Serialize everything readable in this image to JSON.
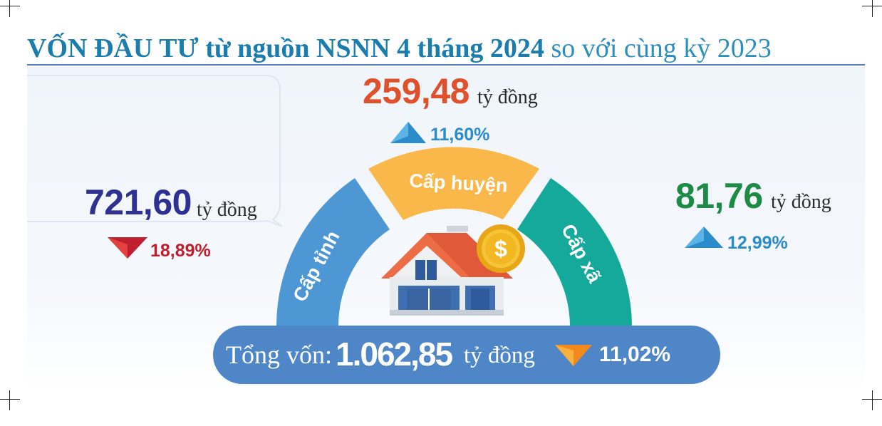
{
  "title": {
    "bold": "VỐN ĐẦU TƯ",
    "mid": " từ nguồn NSNN 4 tháng 2024",
    "tail": " so với cùng kỳ 2023"
  },
  "left": {
    "value": "721,60",
    "unit": "tỷ đồng",
    "change": "18,89%",
    "direction": "down",
    "color": "#2e3192",
    "change_color": "#be1e2d"
  },
  "center": {
    "value": "259,48",
    "unit": "tỷ đồng",
    "change": "11,60%",
    "direction": "up",
    "color": "#e0502a",
    "change_color": "#2b8bcb"
  },
  "right": {
    "value": "81,76",
    "unit": "tỷ đồng",
    "change": "12,99%",
    "direction": "up",
    "color": "#1d8a46",
    "change_color": "#2b8bcb"
  },
  "segments": [
    {
      "label": "Cấp tỉnh",
      "color": "#4c97d4"
    },
    {
      "label": "Cấp huyện",
      "color": "#fbb84a"
    },
    {
      "label": "Cấp xã",
      "color": "#14a99a"
    }
  ],
  "total": {
    "label": "Tổng vốn:",
    "value": "1.062,85",
    "unit": "tỷ đồng",
    "change": "11,02%",
    "direction": "down"
  },
  "icons": [
    "house-icon",
    "coin-icon",
    "arrow-up-icon",
    "arrow-down-icon"
  ]
}
